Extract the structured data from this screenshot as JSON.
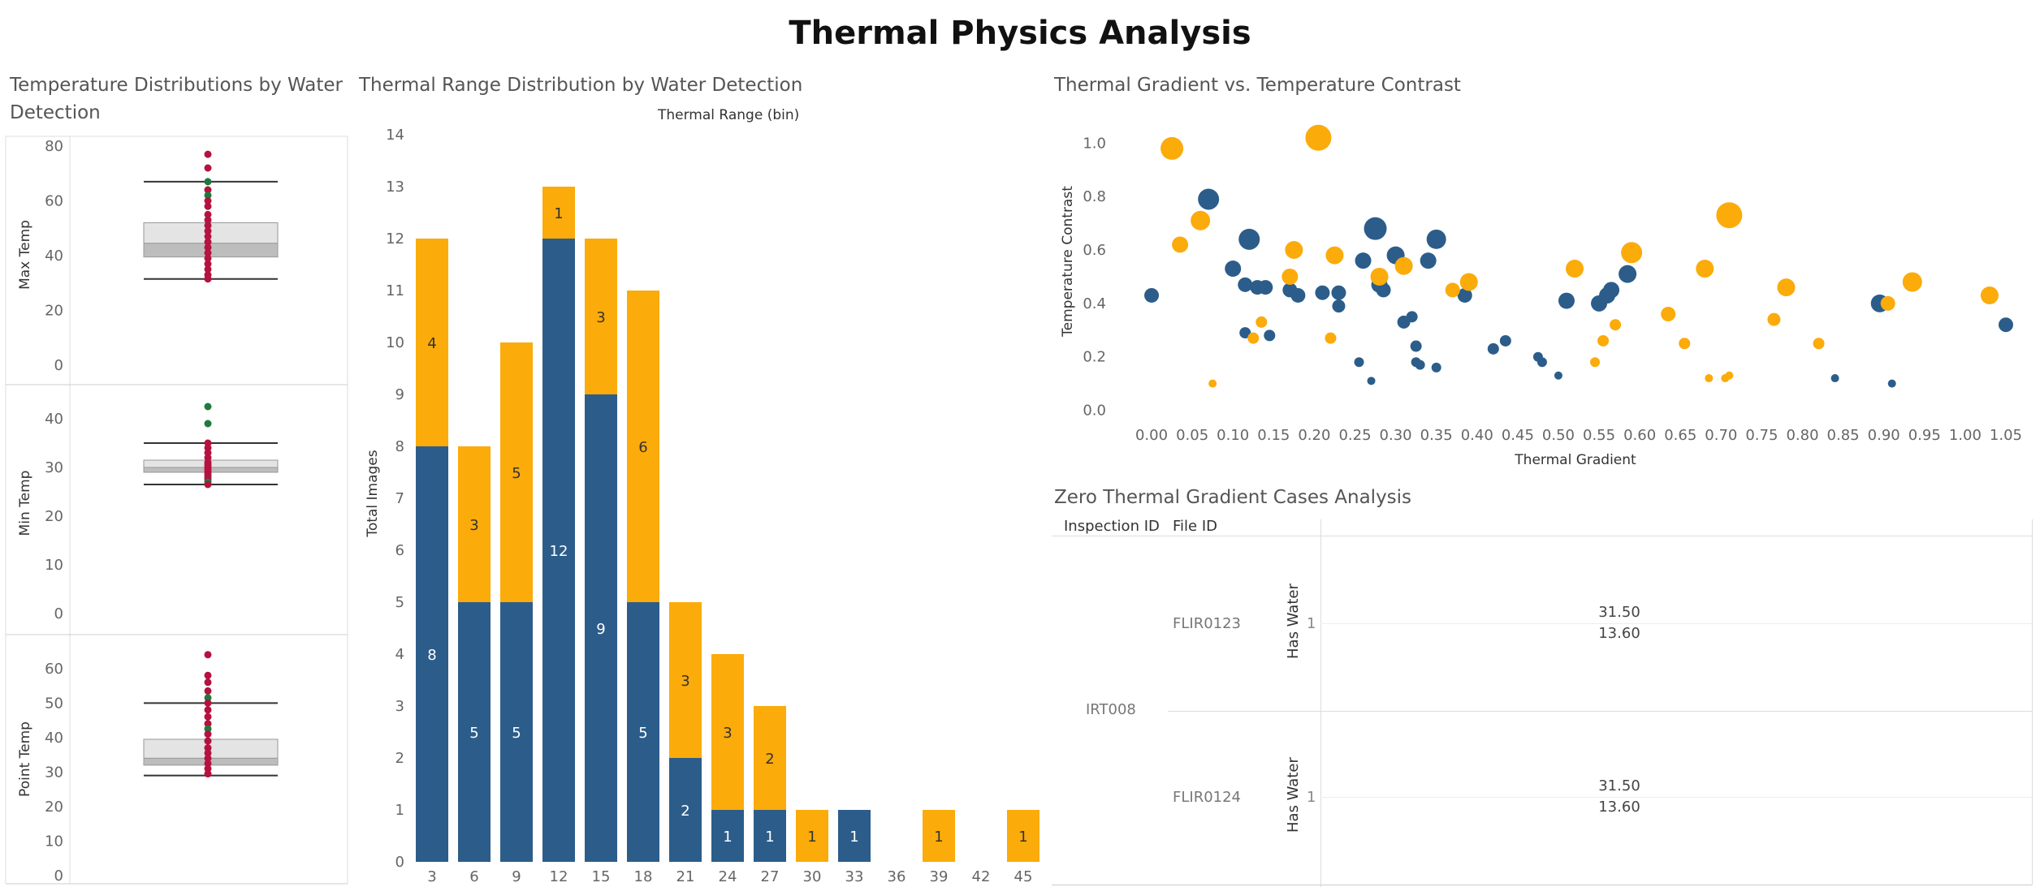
{
  "dashboard": {
    "title": "Thermal Physics Analysis"
  },
  "colors": {
    "no_water": "#2c5d8a",
    "has_water": "#fbab0a",
    "outlier_red": "#b5123f",
    "outlier_green": "#1f7a3c"
  },
  "boxplot_panel": {
    "title_line1": "Temperature Distributions by Water",
    "title_line2": "Detection"
  },
  "histogram_panel": {
    "title": "Thermal Range Distribution by Water Detection",
    "top_label": "Thermal Range (bin)"
  },
  "scatter_panel": {
    "title": "Thermal Gradient vs. Temperature Contrast"
  },
  "table_panel": {
    "title": "Zero Thermal Gradient Cases Analysis",
    "col_inspection": "Inspection ID",
    "col_file": "File ID",
    "inspection_id": "IRT008",
    "rows": [
      {
        "file_id": "FLIR0123",
        "group": "Has Water",
        "flag": "1",
        "value1": "31.50",
        "value2": "13.60"
      },
      {
        "file_id": "FLIR0124",
        "group": "Has Water",
        "flag": "1",
        "value1": "31.50",
        "value2": "13.60"
      }
    ]
  },
  "chart_data": [
    {
      "type": "box",
      "ylabel": "Max Temp",
      "ylim": [
        0,
        80
      ],
      "yticks": [
        0,
        20,
        40,
        60,
        80
      ],
      "whisker_low": 31.5,
      "q1": 39.5,
      "median": 44.5,
      "q3": 52,
      "whisker_high": 67,
      "points": [
        {
          "y": 77,
          "c": "red"
        },
        {
          "y": 72,
          "c": "red"
        },
        {
          "y": 67,
          "c": "green"
        },
        {
          "y": 64,
          "c": "red"
        },
        {
          "y": 62,
          "c": "green"
        },
        {
          "y": 60,
          "c": "red"
        },
        {
          "y": 58,
          "c": "red"
        },
        {
          "y": 55,
          "c": "red"
        },
        {
          "y": 53,
          "c": "red"
        },
        {
          "y": 51,
          "c": "red"
        },
        {
          "y": 49,
          "c": "red"
        },
        {
          "y": 47,
          "c": "red"
        },
        {
          "y": 45,
          "c": "red"
        },
        {
          "y": 43,
          "c": "red"
        },
        {
          "y": 41,
          "c": "red"
        },
        {
          "y": 39,
          "c": "red"
        },
        {
          "y": 37,
          "c": "red"
        },
        {
          "y": 35,
          "c": "red"
        },
        {
          "y": 33,
          "c": "red"
        },
        {
          "y": 31.5,
          "c": "red"
        }
      ]
    },
    {
      "type": "box",
      "ylabel": "Min Temp",
      "ylim": [
        0,
        45
      ],
      "yticks": [
        0,
        10,
        20,
        30,
        40
      ],
      "whisker_low": 26.5,
      "q1": 29,
      "median": 30,
      "q3": 31.5,
      "whisker_high": 35,
      "points": [
        {
          "y": 42.5,
          "c": "green"
        },
        {
          "y": 39,
          "c": "green"
        },
        {
          "y": 35,
          "c": "red"
        },
        {
          "y": 34,
          "c": "red"
        },
        {
          "y": 33,
          "c": "red"
        },
        {
          "y": 32,
          "c": "red"
        },
        {
          "y": 31,
          "c": "red"
        },
        {
          "y": 30.5,
          "c": "red"
        },
        {
          "y": 30,
          "c": "red"
        },
        {
          "y": 29.5,
          "c": "red"
        },
        {
          "y": 29,
          "c": "red"
        },
        {
          "y": 28.5,
          "c": "red"
        },
        {
          "y": 28,
          "c": "red"
        },
        {
          "y": 27.5,
          "c": "red"
        },
        {
          "y": 27,
          "c": "green"
        },
        {
          "y": 26.5,
          "c": "red"
        }
      ]
    },
    {
      "type": "box",
      "ylabel": "Point Temp",
      "ylim": [
        0,
        67
      ],
      "yticks": [
        0,
        10,
        20,
        30,
        40,
        50,
        60
      ],
      "whisker_low": 29,
      "q1": 32,
      "median": 34,
      "q3": 39.5,
      "whisker_high": 50,
      "points": [
        {
          "y": 64,
          "c": "red"
        },
        {
          "y": 58,
          "c": "red"
        },
        {
          "y": 56,
          "c": "red"
        },
        {
          "y": 53.5,
          "c": "red"
        },
        {
          "y": 51.5,
          "c": "green"
        },
        {
          "y": 50,
          "c": "red"
        },
        {
          "y": 48,
          "c": "red"
        },
        {
          "y": 46,
          "c": "red"
        },
        {
          "y": 44,
          "c": "red"
        },
        {
          "y": 42.5,
          "c": "green"
        },
        {
          "y": 41,
          "c": "red"
        },
        {
          "y": 39,
          "c": "red"
        },
        {
          "y": 37,
          "c": "red"
        },
        {
          "y": 35.5,
          "c": "red"
        },
        {
          "y": 34,
          "c": "red"
        },
        {
          "y": 32.5,
          "c": "red"
        },
        {
          "y": 31,
          "c": "red"
        },
        {
          "y": 29.5,
          "c": "red"
        }
      ]
    },
    {
      "type": "bar",
      "stacked": true,
      "xlabel": "",
      "ylabel": "Total Images",
      "ylim": [
        0,
        14
      ],
      "yticks": [
        0,
        1,
        2,
        3,
        4,
        5,
        6,
        7,
        8,
        9,
        10,
        11,
        12,
        13,
        14
      ],
      "categories": [
        "3",
        "6",
        "9",
        "12",
        "15",
        "18",
        "21",
        "24",
        "27",
        "30",
        "33",
        "36",
        "39",
        "42",
        "45"
      ],
      "series": [
        {
          "color": "#2c5d8a",
          "values": [
            8,
            5,
            5,
            12,
            9,
            5,
            2,
            1,
            1,
            0,
            1,
            0,
            0,
            0,
            0
          ]
        },
        {
          "color": "#fbab0a",
          "values": [
            4,
            3,
            5,
            1,
            3,
            6,
            3,
            3,
            2,
            1,
            0,
            0,
            1,
            0,
            1
          ]
        }
      ]
    },
    {
      "type": "scatter",
      "xlabel": "Thermal Gradient",
      "ylabel": "Temperature Contrast",
      "xlim": [
        -0.02,
        1.07
      ],
      "ylim": [
        -0.05,
        1.08
      ],
      "xticks": [
        0.0,
        0.05,
        0.1,
        0.15,
        0.2,
        0.25,
        0.3,
        0.35,
        0.4,
        0.45,
        0.5,
        0.55,
        0.6,
        0.65,
        0.7,
        0.75,
        0.8,
        0.85,
        0.9,
        0.95,
        1.0,
        1.05
      ],
      "yticks": [
        0.0,
        0.2,
        0.4,
        0.6,
        0.8,
        1.0
      ],
      "points": [
        {
          "x": 0.0,
          "y": 0.43,
          "s": 9,
          "g": "no_water"
        },
        {
          "x": 0.07,
          "y": 0.79,
          "s": 13,
          "g": "no_water"
        },
        {
          "x": 0.1,
          "y": 0.53,
          "s": 10,
          "g": "no_water"
        },
        {
          "x": 0.115,
          "y": 0.47,
          "s": 9,
          "g": "no_water"
        },
        {
          "x": 0.13,
          "y": 0.46,
          "s": 9,
          "g": "no_water"
        },
        {
          "x": 0.14,
          "y": 0.46,
          "s": 9,
          "g": "no_water"
        },
        {
          "x": 0.12,
          "y": 0.64,
          "s": 13,
          "g": "no_water"
        },
        {
          "x": 0.115,
          "y": 0.29,
          "s": 7,
          "g": "no_water"
        },
        {
          "x": 0.145,
          "y": 0.28,
          "s": 7,
          "g": "no_water"
        },
        {
          "x": 0.17,
          "y": 0.45,
          "s": 9,
          "g": "no_water"
        },
        {
          "x": 0.18,
          "y": 0.43,
          "s": 9,
          "g": "no_water"
        },
        {
          "x": 0.21,
          "y": 0.44,
          "s": 9,
          "g": "no_water"
        },
        {
          "x": 0.23,
          "y": 0.44,
          "s": 9,
          "g": "no_water"
        },
        {
          "x": 0.23,
          "y": 0.39,
          "s": 8,
          "g": "no_water"
        },
        {
          "x": 0.255,
          "y": 0.18,
          "s": 6,
          "g": "no_water"
        },
        {
          "x": 0.26,
          "y": 0.56,
          "s": 10,
          "g": "no_water"
        },
        {
          "x": 0.27,
          "y": 0.11,
          "s": 5,
          "g": "no_water"
        },
        {
          "x": 0.275,
          "y": 0.68,
          "s": 14,
          "g": "no_water"
        },
        {
          "x": 0.28,
          "y": 0.47,
          "s": 10,
          "g": "no_water"
        },
        {
          "x": 0.285,
          "y": 0.45,
          "s": 9,
          "g": "no_water"
        },
        {
          "x": 0.3,
          "y": 0.58,
          "s": 11,
          "g": "no_water"
        },
        {
          "x": 0.31,
          "y": 0.33,
          "s": 8,
          "g": "no_water"
        },
        {
          "x": 0.31,
          "y": 0.54,
          "s": 10,
          "g": "no_water"
        },
        {
          "x": 0.32,
          "y": 0.35,
          "s": 7,
          "g": "no_water"
        },
        {
          "x": 0.325,
          "y": 0.24,
          "s": 7,
          "g": "no_water"
        },
        {
          "x": 0.325,
          "y": 0.18,
          "s": 6,
          "g": "no_water"
        },
        {
          "x": 0.33,
          "y": 0.17,
          "s": 6,
          "g": "no_water"
        },
        {
          "x": 0.34,
          "y": 0.56,
          "s": 10,
          "g": "no_water"
        },
        {
          "x": 0.35,
          "y": 0.16,
          "s": 6,
          "g": "no_water"
        },
        {
          "x": 0.35,
          "y": 0.64,
          "s": 12,
          "g": "no_water"
        },
        {
          "x": 0.385,
          "y": 0.43,
          "s": 9,
          "g": "no_water"
        },
        {
          "x": 0.42,
          "y": 0.23,
          "s": 7,
          "g": "no_water"
        },
        {
          "x": 0.435,
          "y": 0.26,
          "s": 7,
          "g": "no_water"
        },
        {
          "x": 0.475,
          "y": 0.2,
          "s": 6,
          "g": "no_water"
        },
        {
          "x": 0.48,
          "y": 0.18,
          "s": 6,
          "g": "no_water"
        },
        {
          "x": 0.5,
          "y": 0.13,
          "s": 5,
          "g": "no_water"
        },
        {
          "x": 0.51,
          "y": 0.41,
          "s": 10,
          "g": "no_water"
        },
        {
          "x": 0.55,
          "y": 0.4,
          "s": 10,
          "g": "no_water"
        },
        {
          "x": 0.56,
          "y": 0.43,
          "s": 10,
          "g": "no_water"
        },
        {
          "x": 0.565,
          "y": 0.45,
          "s": 10,
          "g": "no_water"
        },
        {
          "x": 0.585,
          "y": 0.51,
          "s": 11,
          "g": "no_water"
        },
        {
          "x": 0.84,
          "y": 0.12,
          "s": 5,
          "g": "no_water"
        },
        {
          "x": 0.895,
          "y": 0.4,
          "s": 11,
          "g": "no_water"
        },
        {
          "x": 0.91,
          "y": 0.1,
          "s": 5,
          "g": "no_water"
        },
        {
          "x": 1.05,
          "y": 0.32,
          "s": 9,
          "g": "no_water"
        },
        {
          "x": 0.025,
          "y": 0.98,
          "s": 14,
          "g": "has_water"
        },
        {
          "x": 0.035,
          "y": 0.62,
          "s": 10,
          "g": "has_water"
        },
        {
          "x": 0.06,
          "y": 0.71,
          "s": 12,
          "g": "has_water"
        },
        {
          "x": 0.075,
          "y": 0.1,
          "s": 5,
          "g": "has_water"
        },
        {
          "x": 0.125,
          "y": 0.27,
          "s": 7,
          "g": "has_water"
        },
        {
          "x": 0.135,
          "y": 0.33,
          "s": 7,
          "g": "has_water"
        },
        {
          "x": 0.17,
          "y": 0.5,
          "s": 10,
          "g": "has_water"
        },
        {
          "x": 0.175,
          "y": 0.6,
          "s": 11,
          "g": "has_water"
        },
        {
          "x": 0.205,
          "y": 1.02,
          "s": 16,
          "g": "has_water"
        },
        {
          "x": 0.22,
          "y": 0.27,
          "s": 7,
          "g": "has_water"
        },
        {
          "x": 0.225,
          "y": 0.58,
          "s": 11,
          "g": "has_water"
        },
        {
          "x": 0.28,
          "y": 0.5,
          "s": 11,
          "g": "has_water"
        },
        {
          "x": 0.31,
          "y": 0.54,
          "s": 11,
          "g": "has_water"
        },
        {
          "x": 0.37,
          "y": 0.45,
          "s": 9,
          "g": "has_water"
        },
        {
          "x": 0.39,
          "y": 0.48,
          "s": 11,
          "g": "has_water"
        },
        {
          "x": 0.52,
          "y": 0.53,
          "s": 11,
          "g": "has_water"
        },
        {
          "x": 0.545,
          "y": 0.18,
          "s": 6,
          "g": "has_water"
        },
        {
          "x": 0.555,
          "y": 0.26,
          "s": 7,
          "g": "has_water"
        },
        {
          "x": 0.57,
          "y": 0.32,
          "s": 7,
          "g": "has_water"
        },
        {
          "x": 0.59,
          "y": 0.59,
          "s": 13,
          "g": "has_water"
        },
        {
          "x": 0.635,
          "y": 0.36,
          "s": 9,
          "g": "has_water"
        },
        {
          "x": 0.655,
          "y": 0.25,
          "s": 7,
          "g": "has_water"
        },
        {
          "x": 0.68,
          "y": 0.53,
          "s": 11,
          "g": "has_water"
        },
        {
          "x": 0.685,
          "y": 0.12,
          "s": 5,
          "g": "has_water"
        },
        {
          "x": 0.705,
          "y": 0.12,
          "s": 5,
          "g": "has_water"
        },
        {
          "x": 0.71,
          "y": 0.13,
          "s": 5,
          "g": "has_water"
        },
        {
          "x": 0.71,
          "y": 0.73,
          "s": 16,
          "g": "has_water"
        },
        {
          "x": 0.765,
          "y": 0.34,
          "s": 8,
          "g": "has_water"
        },
        {
          "x": 0.78,
          "y": 0.46,
          "s": 11,
          "g": "has_water"
        },
        {
          "x": 0.82,
          "y": 0.25,
          "s": 7,
          "g": "has_water"
        },
        {
          "x": 0.905,
          "y": 0.4,
          "s": 9,
          "g": "has_water"
        },
        {
          "x": 0.935,
          "y": 0.48,
          "s": 12,
          "g": "has_water"
        },
        {
          "x": 1.03,
          "y": 0.43,
          "s": 11,
          "g": "has_water"
        }
      ]
    }
  ]
}
